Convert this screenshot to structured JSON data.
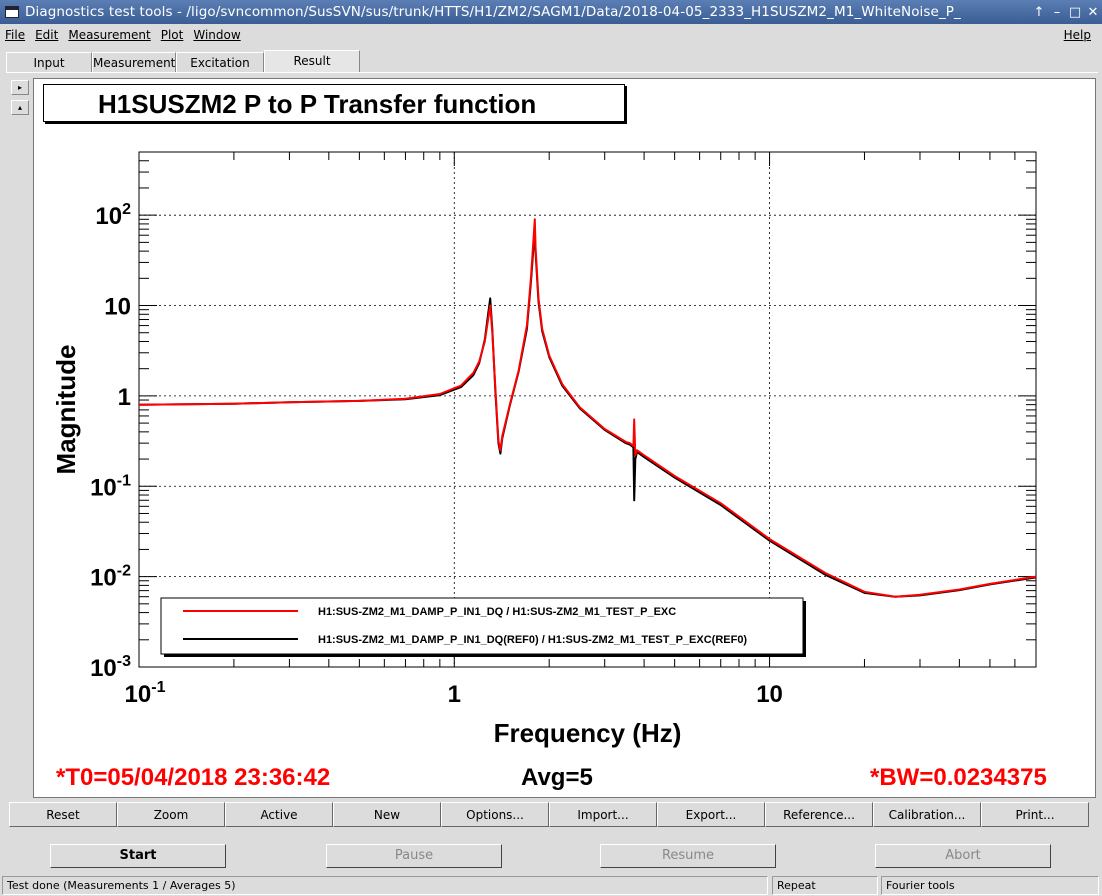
{
  "window": {
    "title": "Diagnostics test tools - /ligo/svncommon/SusSVN/sus/trunk/HTTS/H1/ZM2/SAGM1/Data/2018-04-05_2333_H1SUSZM2_M1_WhiteNoise_P_",
    "controls": [
      "↑",
      "–",
      "□",
      "✕"
    ]
  },
  "menu": {
    "file": "File",
    "edit": "Edit",
    "measurement": "Measurement",
    "plot": "Plot",
    "window": "Window",
    "help": "Help"
  },
  "tabs": [
    {
      "label": "Input"
    },
    {
      "label": "Measurement"
    },
    {
      "label": "Excitation"
    },
    {
      "label": "Result"
    }
  ],
  "side_buttons": {
    "up": "▸",
    "down": "▴"
  },
  "plot": {
    "title": "H1SUSZM2 P to P Transfer function",
    "t0": "*T0=05/04/2018 23:36:42",
    "avg": "Avg=5",
    "bw": "*BW=0.0234375"
  },
  "chart_data": {
    "type": "line",
    "title": "H1SUSZM2 P to P Transfer function",
    "xlabel": "Frequency (Hz)",
    "ylabel": "Magnitude",
    "xscale": "log",
    "yscale": "log",
    "xlim": [
      0.1,
      70
    ],
    "ylim": [
      0.001,
      500
    ],
    "grid": true,
    "legend_position": "bottom-left",
    "x_tick_labels": [
      {
        "value": 0.1,
        "base": "10",
        "exp": "-1"
      },
      {
        "value": 1,
        "base": "1",
        "exp": ""
      },
      {
        "value": 10,
        "base": "10",
        "exp": ""
      }
    ],
    "y_tick_labels": [
      {
        "value": 0.001,
        "base": "10",
        "exp": "-3"
      },
      {
        "value": 0.01,
        "base": "10",
        "exp": "-2"
      },
      {
        "value": 0.1,
        "base": "10",
        "exp": "-1"
      },
      {
        "value": 1,
        "base": "1",
        "exp": ""
      },
      {
        "value": 10,
        "base": "10",
        "exp": ""
      },
      {
        "value": 100,
        "base": "10",
        "exp": "2"
      }
    ],
    "series": [
      {
        "name": "H1:SUS-ZM2_M1_DAMP_P_IN1_DQ / H1:SUS-ZM2_M1_TEST_P_EXC",
        "color": "#ff0000",
        "x": [
          0.1,
          0.2,
          0.3,
          0.5,
          0.7,
          0.9,
          1.05,
          1.15,
          1.2,
          1.25,
          1.28,
          1.3,
          1.32,
          1.35,
          1.38,
          1.4,
          1.42,
          1.5,
          1.6,
          1.7,
          1.75,
          1.8,
          1.81,
          1.85,
          1.9,
          2.0,
          2.2,
          2.5,
          3.0,
          3.5,
          3.6,
          3.7,
          3.72,
          3.75,
          3.8,
          4.0,
          5.0,
          7.0,
          10,
          15,
          20,
          25,
          30,
          40,
          50,
          70
        ],
        "y": [
          0.8,
          0.82,
          0.85,
          0.88,
          0.93,
          1.05,
          1.3,
          1.8,
          2.4,
          4.0,
          7.0,
          10.0,
          5.0,
          1.2,
          0.32,
          0.25,
          0.36,
          0.8,
          1.9,
          6.0,
          20.0,
          90.0,
          45.0,
          12.0,
          5.5,
          2.8,
          1.35,
          0.75,
          0.43,
          0.31,
          0.3,
          0.28,
          0.55,
          0.22,
          0.25,
          0.22,
          0.13,
          0.065,
          0.026,
          0.011,
          0.0068,
          0.006,
          0.0063,
          0.0072,
          0.0083,
          0.01
        ]
      },
      {
        "name": "H1:SUS-ZM2_M1_DAMP_P_IN1_DQ(REF0) / H1:SUS-ZM2_M1_TEST_P_EXC(REF0)",
        "color": "#000000",
        "x": [
          0.1,
          0.2,
          0.3,
          0.5,
          0.7,
          0.9,
          1.05,
          1.15,
          1.2,
          1.25,
          1.28,
          1.3,
          1.32,
          1.35,
          1.38,
          1.4,
          1.42,
          1.5,
          1.6,
          1.7,
          1.75,
          1.8,
          1.81,
          1.85,
          1.9,
          2.0,
          2.2,
          2.5,
          3.0,
          3.5,
          3.6,
          3.7,
          3.72,
          3.75,
          3.8,
          4.0,
          5.0,
          7.0,
          10,
          15,
          20,
          25,
          30,
          40,
          50,
          70
        ],
        "y": [
          0.8,
          0.82,
          0.85,
          0.88,
          0.92,
          1.02,
          1.25,
          1.7,
          2.3,
          4.2,
          8.0,
          12.0,
          5.5,
          1.1,
          0.3,
          0.23,
          0.34,
          0.78,
          1.85,
          5.5,
          18.0,
          70.0,
          40.0,
          11.0,
          5.2,
          2.7,
          1.3,
          0.73,
          0.42,
          0.3,
          0.29,
          0.27,
          0.07,
          0.2,
          0.24,
          0.21,
          0.125,
          0.062,
          0.025,
          0.0105,
          0.0066,
          0.006,
          0.0062,
          0.0071,
          0.0082,
          0.0098
        ]
      }
    ]
  },
  "buttons": {
    "reset": "Reset",
    "zoom": "Zoom",
    "active": "Active",
    "new": "New",
    "options": "Options...",
    "import": "Import...",
    "export": "Export...",
    "reference": "Reference...",
    "calibration": "Calibration...",
    "print": "Print..."
  },
  "controls": {
    "start": "Start",
    "pause": "Pause",
    "resume": "Resume",
    "abort": "Abort"
  },
  "status": {
    "message": "Test done (Measurements 1 / Averages 5)",
    "mode": "Repeat",
    "tools": "Fourier tools"
  }
}
